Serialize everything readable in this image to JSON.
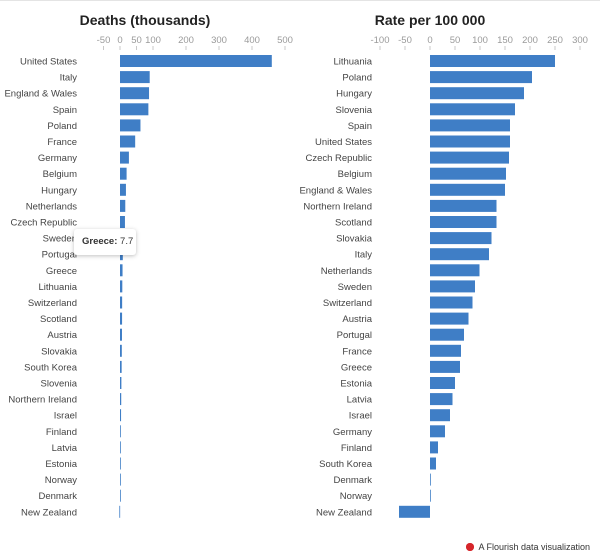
{
  "chart_data": [
    {
      "type": "bar",
      "orientation": "horizontal",
      "title": "Deaths (thousands)",
      "xticks": [
        "-50",
        "0",
        "50",
        "100",
        "200",
        "300",
        "400",
        "500"
      ],
      "xtick_values": [
        -50,
        0,
        50,
        100,
        200,
        300,
        400,
        500
      ],
      "xlim": [
        -50,
        500
      ],
      "categories": [
        "United States",
        "Italy",
        "England & Wales",
        "Spain",
        "Poland",
        "France",
        "Germany",
        "Belgium",
        "Hungary",
        "Netherlands",
        "Czech Republic",
        "Sweden",
        "Portugal",
        "Greece",
        "Lithuania",
        "Switzerland",
        "Scotland",
        "Austria",
        "Slovakia",
        "South Korea",
        "Slovenia",
        "Northern Ireland",
        "Israel",
        "Finland",
        "Latvia",
        "Estonia",
        "Norway",
        "Denmark",
        "New Zealand"
      ],
      "values": [
        460,
        90,
        88,
        86,
        62,
        46,
        27,
        20,
        18,
        16,
        15,
        9,
        8.5,
        7.7,
        7,
        6.5,
        6.3,
        6,
        5.5,
        5,
        4.2,
        3.7,
        3.2,
        1.7,
        1.5,
        1,
        0.5,
        0.4,
        -2
      ],
      "color": "#3f7ec6"
    },
    {
      "type": "bar",
      "orientation": "horizontal",
      "title": "Rate per 100 000",
      "xticks": [
        "-100",
        "-50",
        "0",
        "50",
        "100",
        "150",
        "200",
        "250",
        "300"
      ],
      "xtick_values": [
        -100,
        -50,
        0,
        50,
        100,
        150,
        200,
        250,
        300
      ],
      "xlim": [
        -100,
        300
      ],
      "categories": [
        "Lithuania",
        "Poland",
        "Hungary",
        "Slovenia",
        "Spain",
        "United States",
        "Czech Republic",
        "Belgium",
        "England & Wales",
        "Northern Ireland",
        "Scotland",
        "Slovakia",
        "Italy",
        "Netherlands",
        "Sweden",
        "Switzerland",
        "Austria",
        "Portugal",
        "France",
        "Greece",
        "Estonia",
        "Latvia",
        "Israel",
        "Germany",
        "Finland",
        "South Korea",
        "Denmark",
        "Norway",
        "New Zealand"
      ],
      "values": [
        250,
        204,
        188,
        170,
        160,
        160,
        158,
        152,
        150,
        133,
        133,
        123,
        118,
        99,
        90,
        85,
        77,
        68,
        62,
        60,
        50,
        45,
        40,
        30,
        16,
        12,
        1,
        1,
        -62
      ],
      "color": "#3f7ec6"
    }
  ],
  "tooltip": {
    "label": "Greece:",
    "value": "7.7"
  },
  "footer": {
    "text": "A Flourish data visualization"
  }
}
